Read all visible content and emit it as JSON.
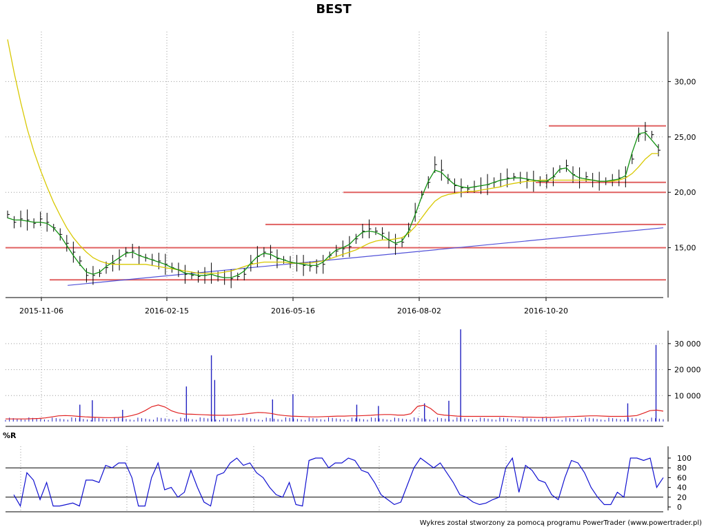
{
  "chart_data": [
    {
      "type": "line",
      "title": "BEST",
      "panel": "price",
      "ylim": [
        10.5,
        34.5
      ],
      "y_ticks": [
        15,
        20,
        25,
        30
      ],
      "y_tick_labels": [
        "15,00",
        "20,00",
        "25,00",
        "30,00"
      ],
      "x_tick_labels": [
        "2015-11-06",
        "2016-02-15",
        "2016-05-16",
        "2016-08-02",
        "2016-10-20"
      ],
      "grid": true,
      "series": [
        {
          "color": "#000000",
          "style": "ohlc-bars",
          "values": [
            18.0,
            17.3,
            17.6,
            17.5,
            17.2,
            17.6,
            17.3,
            16.8,
            16.2,
            15.4,
            14.6,
            13.8,
            12.5,
            12.5,
            12.7,
            13.2,
            13.6,
            13.9,
            14.6,
            14.7,
            14.3,
            14.1,
            13.9,
            13.8,
            13.5,
            13.2,
            13.0,
            12.6,
            12.5,
            12.4,
            12.5,
            12.7,
            12.4,
            12.3,
            12.2,
            12.4,
            12.6,
            13.6,
            14.2,
            14.6,
            14.6,
            14.0,
            13.9,
            13.7,
            13.6,
            13.4,
            13.3,
            13.3,
            13.5,
            14.3,
            14.7,
            14.9,
            15.1,
            15.8,
            16.5,
            16.7,
            16.5,
            16.3,
            15.7,
            15.3,
            15.5,
            16.6,
            18.2,
            19.8,
            20.9,
            22.5,
            22.0,
            21.2,
            20.6,
            20.4,
            20.3,
            20.5,
            20.6,
            20.7,
            20.9,
            21.1,
            21.3,
            21.4,
            21.3,
            21.1,
            21.0,
            21.0,
            21.0,
            21.4,
            22.1,
            22.4,
            21.6,
            21.3,
            21.4,
            21.1,
            21.0,
            21.0,
            21.1,
            21.3,
            21.4,
            23.0,
            25.2,
            25.5,
            25.2,
            23.8
          ]
        },
        {
          "color": "#109010",
          "style": "moving-average-short",
          "values": [
            17.7,
            17.5,
            17.5,
            17.4,
            17.3,
            17.3,
            17.2,
            16.8,
            16.1,
            15.2,
            14.3,
            13.5,
            12.8,
            12.6,
            12.8,
            13.3,
            13.7,
            14.1,
            14.5,
            14.6,
            14.3,
            14.1,
            13.9,
            13.7,
            13.5,
            13.2,
            13.0,
            12.7,
            12.6,
            12.5,
            12.5,
            12.6,
            12.4,
            12.3,
            12.3,
            12.5,
            12.9,
            13.6,
            14.2,
            14.5,
            14.4,
            14.1,
            13.9,
            13.7,
            13.6,
            13.5,
            13.4,
            13.4,
            13.7,
            14.3,
            14.8,
            15.0,
            15.3,
            15.9,
            16.4,
            16.5,
            16.4,
            16.1,
            15.7,
            15.4,
            15.6,
            16.5,
            18.0,
            19.6,
            21.0,
            22.0,
            21.8,
            21.2,
            20.7,
            20.5,
            20.4,
            20.5,
            20.6,
            20.7,
            20.9,
            21.1,
            21.2,
            21.3,
            21.3,
            21.2,
            21.1,
            21.0,
            21.0,
            21.4,
            22.1,
            22.2,
            21.6,
            21.3,
            21.2,
            21.1,
            21.0,
            21.0,
            21.1,
            21.2,
            21.5,
            23.6,
            25.3,
            25.4,
            24.7,
            24.0
          ]
        },
        {
          "color": "#d8c800",
          "style": "moving-average-long",
          "values": [
            33.8,
            30.8,
            28.1,
            25.7,
            23.7,
            22.0,
            20.5,
            19.1,
            17.9,
            16.8,
            15.9,
            15.2,
            14.6,
            14.1,
            13.8,
            13.6,
            13.5,
            13.5,
            13.5,
            13.5,
            13.5,
            13.5,
            13.4,
            13.3,
            13.2,
            13.1,
            13.0,
            12.9,
            12.8,
            12.7,
            12.7,
            12.7,
            12.7,
            12.8,
            12.9,
            13.1,
            13.3,
            13.5,
            13.6,
            13.7,
            13.7,
            13.7,
            13.7,
            13.6,
            13.6,
            13.6,
            13.6,
            13.7,
            13.8,
            14.0,
            14.2,
            14.4,
            14.6,
            14.8,
            15.1,
            15.4,
            15.6,
            15.7,
            15.7,
            15.8,
            15.9,
            16.3,
            16.9,
            17.7,
            18.5,
            19.2,
            19.6,
            19.8,
            19.9,
            20.0,
            20.1,
            20.1,
            20.2,
            20.3,
            20.4,
            20.5,
            20.7,
            20.8,
            20.9,
            21.0,
            21.0,
            21.1,
            21.1,
            21.1,
            21.1,
            21.1,
            21.1,
            21.1,
            21.1,
            21.1,
            21.0,
            21.0,
            21.0,
            21.1,
            21.3,
            21.7,
            22.3,
            23.0,
            23.5,
            23.5
          ]
        },
        {
          "color": "#5050d8",
          "style": "trend-line",
          "x": [
            0.0945,
            1.0
          ],
          "values": [
            11.6,
            16.8
          ]
        }
      ],
      "support_resistance_levels": [
        {
          "value": 12.1,
          "color": "#e06060"
        },
        {
          "value": 15.0,
          "color": "#e06060"
        },
        {
          "value": 17.1,
          "color": "#e06060"
        },
        {
          "value": 20.0,
          "color": "#e06060"
        },
        {
          "value": 20.9,
          "color": "#e06060"
        },
        {
          "value": 26.0,
          "color": "#e06060"
        }
      ]
    },
    {
      "type": "bar",
      "panel": "volume",
      "ylim": [
        0,
        35000
      ],
      "y_ticks": [
        10000,
        20000,
        30000
      ],
      "y_tick_labels": [
        "10 000",
        "20 000",
        "30 000"
      ],
      "grid": true,
      "series": [
        {
          "color": "#2020c0",
          "style": "volume-bars",
          "spikes": [
            {
              "x": 0.113,
              "value": 6500
            },
            {
              "x": 0.132,
              "value": 8200
            },
            {
              "x": 0.178,
              "value": 4500
            },
            {
              "x": 0.275,
              "value": 13500
            },
            {
              "x": 0.313,
              "value": 25500
            },
            {
              "x": 0.318,
              "value": 16000
            },
            {
              "x": 0.406,
              "value": 8500
            },
            {
              "x": 0.437,
              "value": 10500
            },
            {
              "x": 0.534,
              "value": 6500
            },
            {
              "x": 0.567,
              "value": 6000
            },
            {
              "x": 0.637,
              "value": 7000
            },
            {
              "x": 0.674,
              "value": 8000
            },
            {
              "x": 0.692,
              "value": 35500
            },
            {
              "x": 0.946,
              "value": 7000
            },
            {
              "x": 0.989,
              "value": 29500
            }
          ],
          "base_level": 1000
        },
        {
          "color": "#e02020",
          "style": "volume-average",
          "values": [
            1000,
            1000,
            1000,
            1000,
            1100,
            1200,
            1400,
            1800,
            2200,
            2300,
            2200,
            2000,
            1800,
            1700,
            1600,
            1500,
            1500,
            1600,
            1800,
            2300,
            3000,
            4200,
            5700,
            6400,
            5600,
            4100,
            3300,
            2900,
            2800,
            2700,
            2600,
            2500,
            2400,
            2400,
            2500,
            2700,
            2900,
            3200,
            3500,
            3400,
            3100,
            2600,
            2300,
            2100,
            2000,
            1900,
            1800,
            1800,
            1900,
            2000,
            2100,
            2100,
            2200,
            2200,
            2300,
            2400,
            2600,
            2700,
            2700,
            2500,
            2500,
            3000,
            5800,
            6300,
            5000,
            2900,
            2500,
            2300,
            2100,
            2000,
            2000,
            2000,
            2000,
            2000,
            2000,
            2000,
            1900,
            1800,
            1700,
            1700,
            1600,
            1600,
            1600,
            1700,
            1800,
            1900,
            2000,
            2100,
            2200,
            2200,
            2100,
            2000,
            2000,
            2000,
            2100,
            2300,
            3200,
            4200,
            4400,
            4000
          ]
        }
      ]
    },
    {
      "type": "line",
      "panel": "oscillator",
      "title": "%R",
      "ylim": [
        0,
        100
      ],
      "y_ticks": [
        0,
        20,
        40,
        60,
        80,
        100
      ],
      "y_tick_labels": [
        "0",
        "20",
        "40",
        "60",
        "80",
        "100"
      ],
      "reference_lines": [
        20,
        80
      ],
      "series": [
        {
          "color": "#1010d0",
          "style": "line",
          "values": [
            25,
            2,
            70,
            55,
            15,
            50,
            2,
            2,
            5,
            8,
            2,
            55,
            55,
            50,
            85,
            80,
            90,
            90,
            60,
            2,
            2,
            60,
            90,
            35,
            40,
            20,
            30,
            75,
            40,
            10,
            2,
            65,
            70,
            90,
            100,
            85,
            90,
            70,
            60,
            40,
            25,
            20,
            50,
            5,
            2,
            95,
            100,
            100,
            80,
            90,
            90,
            100,
            95,
            75,
            70,
            50,
            25,
            15,
            5,
            10,
            45,
            80,
            100,
            90,
            80,
            90,
            70,
            50,
            25,
            20,
            10,
            5,
            8,
            15,
            20,
            80,
            100,
            30,
            85,
            75,
            55,
            50,
            25,
            15,
            60,
            95,
            90,
            70,
            40,
            20,
            5,
            5,
            30,
            20,
            100,
            100,
            95,
            100,
            40,
            60
          ]
        }
      ]
    }
  ],
  "footer": {
    "credit": "Wykres został stworzony za pomocą programu PowerTrader (www.powertrader.pl)"
  },
  "colors": {
    "price_bars": "#000000",
    "ma_short": "#109010",
    "ma_long": "#d8c800",
    "support": "#e06060",
    "trend": "#5050d8",
    "volume": "#2020c0",
    "volume_avg": "#e02020",
    "oscillator": "#1010d0"
  }
}
